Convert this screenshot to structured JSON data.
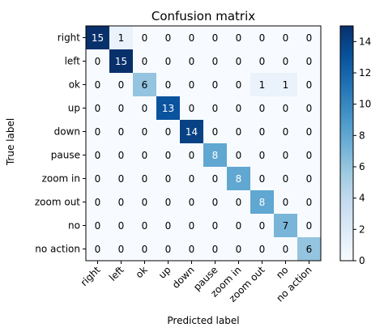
{
  "chart_data": {
    "type": "heatmap",
    "title": "Confusion matrix",
    "xlabel": "Predicted label",
    "ylabel": "True label",
    "x_categories": [
      "right",
      "left",
      "ok",
      "up",
      "down",
      "pause",
      "zoom in",
      "zoom out",
      "no",
      "no action"
    ],
    "y_categories": [
      "right",
      "left",
      "ok",
      "up",
      "down",
      "pause",
      "zoom in",
      "zoom out",
      "no",
      "no action"
    ],
    "matrix": [
      [
        15,
        1,
        0,
        0,
        0,
        0,
        0,
        0,
        0,
        0
      ],
      [
        0,
        15,
        0,
        0,
        0,
        0,
        0,
        0,
        0,
        0
      ],
      [
        0,
        0,
        6,
        0,
        0,
        0,
        0,
        1,
        1,
        0
      ],
      [
        0,
        0,
        0,
        13,
        0,
        0,
        0,
        0,
        0,
        0
      ],
      [
        0,
        0,
        0,
        0,
        14,
        0,
        0,
        0,
        0,
        0
      ],
      [
        0,
        0,
        0,
        0,
        0,
        8,
        0,
        0,
        0,
        0
      ],
      [
        0,
        0,
        0,
        0,
        0,
        0,
        8,
        0,
        0,
        0
      ],
      [
        0,
        0,
        0,
        0,
        0,
        0,
        0,
        8,
        0,
        0
      ],
      [
        0,
        0,
        0,
        0,
        0,
        0,
        0,
        0,
        7,
        0
      ],
      [
        0,
        0,
        0,
        0,
        0,
        0,
        0,
        0,
        0,
        6
      ]
    ],
    "colormap": "Blues",
    "colorbar_range": [
      0,
      15
    ],
    "colorbar_ticks": [
      0,
      2,
      4,
      6,
      8,
      10,
      12,
      14
    ],
    "colors": {
      "low": "#f7fbff",
      "high": "#08306b",
      "text_light": "#ffffff",
      "text_dark": "#000000"
    }
  }
}
